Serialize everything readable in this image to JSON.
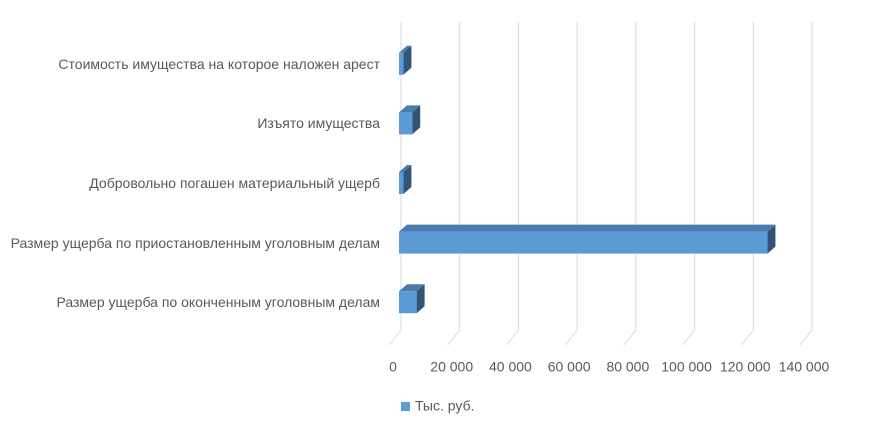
{
  "chart_data": {
    "type": "bar3d_horizontal",
    "categories": [
      "Стоимость имущества на которое наложен арест",
      "Изъято имущества",
      "Добровольно погашен материальный ущерб",
      "Размер ущерба по приостановленным уголовным делам",
      "Размер ущерба по оконченным уголовным делам"
    ],
    "series": [
      {
        "name": "Тыс. руб.",
        "color": "#5b9bd5",
        "values": [
          1500,
          4500,
          1500,
          125500,
          6000
        ]
      }
    ],
    "xlim": [
      0,
      140000
    ],
    "xticks": [
      0,
      {
        "value": 20000,
        "label": "20 000"
      },
      {
        "value": 40000,
        "label": "40 000"
      },
      {
        "value": 60000,
        "label": "60 000"
      },
      {
        "value": 80000,
        "label": "80 000"
      },
      {
        "value": 100000,
        "label": "100 000"
      },
      {
        "value": 120000,
        "label": "120 000"
      },
      {
        "value": 140000,
        "label": "140 000"
      }
    ],
    "grid": true,
    "legend": "bottom"
  }
}
